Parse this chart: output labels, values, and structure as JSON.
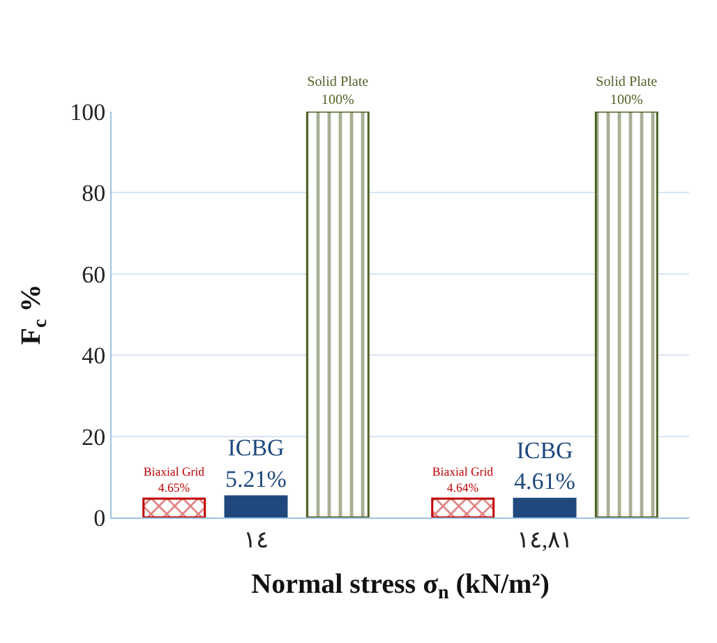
{
  "chart_data": {
    "type": "bar",
    "xlabel": "Normal stress σ$_{n}$ (kN/m²)",
    "ylabel": "F$_{c}$ %",
    "categories": [
      "١٤",
      "١٤,٨١"
    ],
    "series": [
      {
        "name": "Biaxial Grid",
        "color": "#c00000",
        "values": [
          4.65,
          4.64
        ],
        "value_labels": [
          "4.65%",
          "4.64%"
        ]
      },
      {
        "name": "ICBG",
        "color": "#1f497d",
        "values": [
          5.21,
          4.61
        ],
        "value_labels": [
          "5.21%",
          "4.61%"
        ]
      },
      {
        "name": "Solid Plate",
        "color": "#4f6228",
        "values": [
          100,
          100
        ],
        "value_labels": [
          "100%",
          "100%"
        ]
      }
    ],
    "ylim": [
      0,
      100
    ],
    "yticks": [
      0,
      20,
      40,
      60,
      80,
      100
    ],
    "grid": "y",
    "legend": false
  }
}
